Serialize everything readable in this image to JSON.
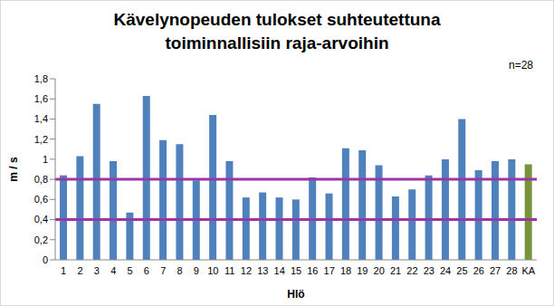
{
  "chart_data": {
    "type": "bar",
    "title": "Kävelynopeuden tulokset suhteutettuna toiminnallisiin raja-arvoihin",
    "annotation": "n=28",
    "x_label": "Hlö",
    "y_label": "m / s",
    "categories": [
      "1",
      "2",
      "3",
      "4",
      "5",
      "6",
      "7",
      "8",
      "9",
      "10",
      "11",
      "12",
      "13",
      "14",
      "15",
      "16",
      "17",
      "18",
      "19",
      "20",
      "21",
      "22",
      "23",
      "24",
      "25",
      "26",
      "27",
      "28",
      "KA"
    ],
    "values": [
      0.84,
      1.03,
      1.55,
      0.98,
      0.47,
      1.63,
      1.19,
      1.15,
      0.79,
      1.44,
      0.98,
      0.62,
      0.67,
      0.62,
      0.6,
      0.82,
      0.66,
      1.11,
      1.09,
      0.94,
      0.63,
      0.7,
      0.84,
      1.0,
      1.4,
      0.89,
      0.98,
      1.0,
      0.95
    ],
    "colors": [
      "#4f81bd",
      "#4f81bd",
      "#4f81bd",
      "#4f81bd",
      "#4f81bd",
      "#4f81bd",
      "#4f81bd",
      "#4f81bd",
      "#4f81bd",
      "#4f81bd",
      "#4f81bd",
      "#4f81bd",
      "#4f81bd",
      "#4f81bd",
      "#4f81bd",
      "#4f81bd",
      "#4f81bd",
      "#4f81bd",
      "#4f81bd",
      "#4f81bd",
      "#4f81bd",
      "#4f81bd",
      "#4f81bd",
      "#4f81bd",
      "#4f81bd",
      "#4f81bd",
      "#4f81bd",
      "#4f81bd",
      "#77933c"
    ],
    "ylim": [
      0,
      1.8
    ],
    "yticks": [
      0,
      {
        "value": 0.2,
        "label": "0,2"
      },
      {
        "value": 0.4,
        "label": "0,4"
      },
      {
        "value": 0.6,
        "label": "0,6"
      },
      {
        "value": 0.8,
        "label": "0,8"
      },
      1,
      {
        "value": 1.2,
        "label": "1,2"
      },
      {
        "value": 1.4,
        "label": "1,4"
      },
      {
        "value": 1.6,
        "label": "1,6"
      },
      {
        "value": 1.8,
        "label": "1,8"
      }
    ],
    "reference_lines": [
      {
        "value": 0.4,
        "color": "#9b36a8"
      },
      {
        "value": 0.8,
        "color": "#9b36a8"
      }
    ],
    "grid": false
  }
}
